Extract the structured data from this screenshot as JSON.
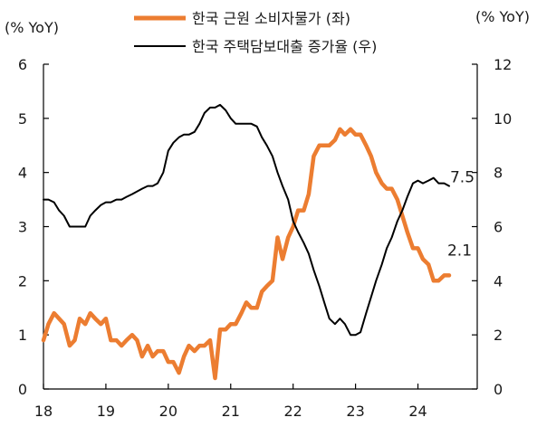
{
  "chart_data": {
    "type": "line",
    "left_axis_unit": "(% YoY)",
    "right_axis_unit": "(% YoY)",
    "x_ticks": [
      "18",
      "19",
      "20",
      "21",
      "22",
      "23",
      "24"
    ],
    "x_range": [
      2018.0,
      2024.95
    ],
    "left_ylim": [
      0,
      6
    ],
    "left_yticks": [
      "0",
      "1",
      "2",
      "3",
      "4",
      "5",
      "6"
    ],
    "right_ylim": [
      0,
      12
    ],
    "right_yticks": [
      "0",
      "2",
      "4",
      "6",
      "8",
      "10",
      "12"
    ],
    "grid": false,
    "legend_position": "top",
    "series": [
      {
        "name": "한국 근원 소비자물가 (좌)",
        "axis": "left",
        "color": "#ec7d31",
        "x": [
          2018.0,
          2018.08,
          2018.17,
          2018.25,
          2018.33,
          2018.42,
          2018.5,
          2018.58,
          2018.67,
          2018.75,
          2018.83,
          2018.92,
          2019.0,
          2019.08,
          2019.17,
          2019.25,
          2019.33,
          2019.42,
          2019.5,
          2019.58,
          2019.67,
          2019.75,
          2019.83,
          2019.92,
          2020.0,
          2020.08,
          2020.17,
          2020.25,
          2020.33,
          2020.42,
          2020.5,
          2020.58,
          2020.67,
          2020.75,
          2020.83,
          2020.92,
          2021.0,
          2021.08,
          2021.17,
          2021.25,
          2021.33,
          2021.42,
          2021.5,
          2021.58,
          2021.67,
          2021.75,
          2021.83,
          2021.92,
          2022.0,
          2022.08,
          2022.17,
          2022.25,
          2022.33,
          2022.42,
          2022.5,
          2022.58,
          2022.67,
          2022.75,
          2022.83,
          2022.92,
          2023.0,
          2023.08,
          2023.17,
          2023.25,
          2023.33,
          2023.42,
          2023.5,
          2023.58,
          2023.67,
          2023.75,
          2023.83,
          2023.92,
          2024.0,
          2024.08,
          2024.17,
          2024.25,
          2024.33,
          2024.42,
          2024.5
        ],
        "values": [
          0.9,
          1.2,
          1.4,
          1.3,
          1.2,
          0.8,
          0.9,
          1.3,
          1.2,
          1.4,
          1.3,
          1.2,
          1.3,
          0.9,
          0.9,
          0.8,
          0.9,
          1.0,
          0.9,
          0.6,
          0.8,
          0.6,
          0.7,
          0.7,
          0.5,
          0.5,
          0.3,
          0.6,
          0.8,
          0.7,
          0.8,
          0.8,
          0.9,
          0.2,
          1.1,
          1.1,
          1.2,
          1.2,
          1.4,
          1.6,
          1.5,
          1.5,
          1.8,
          1.9,
          2.0,
          2.8,
          2.4,
          2.8,
          3.0,
          3.3,
          3.3,
          3.6,
          4.3,
          4.5,
          4.5,
          4.5,
          4.6,
          4.8,
          4.7,
          4.8,
          4.7,
          4.7,
          4.5,
          4.3,
          4.0,
          3.8,
          3.7,
          3.7,
          3.5,
          3.2,
          2.9,
          2.6,
          2.6,
          2.4,
          2.3,
          2.0,
          2.0,
          2.1,
          2.1
        ]
      },
      {
        "name": "한국 주택담보대출 증가율 (우)",
        "axis": "right",
        "color": "#000000",
        "x": [
          2018.0,
          2018.08,
          2018.17,
          2018.25,
          2018.33,
          2018.42,
          2018.5,
          2018.58,
          2018.67,
          2018.75,
          2018.83,
          2018.92,
          2019.0,
          2019.08,
          2019.17,
          2019.25,
          2019.33,
          2019.42,
          2019.5,
          2019.58,
          2019.67,
          2019.75,
          2019.83,
          2019.92,
          2020.0,
          2020.08,
          2020.17,
          2020.25,
          2020.33,
          2020.42,
          2020.5,
          2020.58,
          2020.67,
          2020.75,
          2020.83,
          2020.92,
          2021.0,
          2021.08,
          2021.17,
          2021.25,
          2021.33,
          2021.42,
          2021.5,
          2021.58,
          2021.67,
          2021.75,
          2021.83,
          2021.92,
          2022.0,
          2022.08,
          2022.17,
          2022.25,
          2022.33,
          2022.42,
          2022.5,
          2022.58,
          2022.67,
          2022.75,
          2022.83,
          2022.92,
          2023.0,
          2023.08,
          2023.17,
          2023.25,
          2023.33,
          2023.42,
          2023.5,
          2023.58,
          2023.67,
          2023.75,
          2023.83,
          2023.92,
          2024.0,
          2024.08,
          2024.17,
          2024.25,
          2024.33,
          2024.42,
          2024.5
        ],
        "values": [
          7.0,
          7.0,
          6.9,
          6.6,
          6.4,
          6.0,
          6.0,
          6.0,
          6.0,
          6.4,
          6.6,
          6.8,
          6.9,
          6.9,
          7.0,
          7.0,
          7.1,
          7.2,
          7.3,
          7.4,
          7.5,
          7.5,
          7.6,
          8.0,
          8.8,
          9.1,
          9.3,
          9.4,
          9.4,
          9.5,
          9.8,
          10.2,
          10.4,
          10.4,
          10.5,
          10.3,
          10.0,
          9.8,
          9.8,
          9.8,
          9.8,
          9.7,
          9.3,
          9.0,
          8.6,
          8.0,
          7.5,
          7.0,
          6.2,
          5.8,
          5.4,
          5.0,
          4.4,
          3.8,
          3.2,
          2.6,
          2.4,
          2.6,
          2.4,
          2.0,
          2.0,
          2.1,
          2.8,
          3.4,
          4.0,
          4.6,
          5.2,
          5.6,
          6.2,
          6.6,
          7.1,
          7.6,
          7.7,
          7.6,
          7.7,
          7.8,
          7.6,
          7.6,
          7.5
        ]
      }
    ],
    "annotations": [
      {
        "text": "7.5",
        "series": 1
      },
      {
        "text": "2.1",
        "series": 0
      }
    ]
  }
}
